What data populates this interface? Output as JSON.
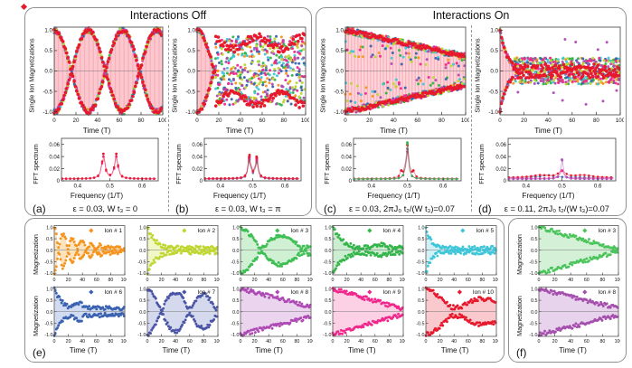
{
  "figure": {
    "titles": {
      "left": "Interactions Off",
      "right": "Interactions On"
    },
    "panel_letters": {
      "a": "(a)",
      "b": "(b)",
      "c": "(c)",
      "d": "(d)",
      "e": "(e)",
      "f": "(f)"
    },
    "captions": {
      "a": "ε = 0.03, W t₃ = 0",
      "b": "ε = 0.03, W t₃ = π",
      "c": "ε = 0.03, 2πJ₀ t₂/(W t₃)=0.07",
      "d": "ε = 0.11, 2πJ₀ t₂/(W t₃)=0.07"
    },
    "axis_labels": {
      "time": "Time (T)",
      "single_ion_mag": "Single Ion Magnetizations",
      "fft": "FFT spectrum",
      "frequency": "Frequency (1/T)",
      "magnetization": "Magnetization"
    },
    "axis_ticks": {
      "time_ticks": [
        0,
        20,
        40,
        60,
        80,
        100
      ],
      "time_tick_labels": [
        "0",
        "20",
        "40",
        "60",
        "80",
        "100"
      ],
      "mag_ticks": [
        1.0,
        0.5,
        0.0,
        -0.5,
        -1.0
      ],
      "mag_tick_labels": [
        "1.0",
        "0.5",
        "0.0",
        "-0.5",
        "-1.0"
      ],
      "fft_x_ticks": [
        0.4,
        0.5,
        0.6
      ],
      "fft_x_tick_labels": [
        "0.4",
        "0.5",
        "0.6"
      ],
      "fft_y_ticks": [
        0,
        0.02,
        0.04,
        0.06
      ],
      "fft_y_tick_labels": [
        "0",
        "0.02",
        "0.04",
        "0.06"
      ]
    }
  },
  "colors": {
    "primary_trace": "#E8192C",
    "oscillation_fill": "#F9A9B4",
    "trace_palette": [
      "#F5941E",
      "#33B54A",
      "#3FC6D8",
      "#3A62B0",
      "#AE4BB5",
      "#F0288C",
      "#BFD730"
    ],
    "box_border": "#8F8F8F",
    "axis_frame": "#555555",
    "text": "#111111"
  },
  "chart_data": [
    {
      "id": "time_a",
      "panel": "a",
      "type": "scatter",
      "xlabel": "Time (T)",
      "ylabel": "Single Ion Magnetizations",
      "xlim": [
        0,
        100
      ],
      "ylim": [
        -1.1,
        1.1
      ],
      "pattern": "beat",
      "beat_period": 63,
      "amplitude": 1.0,
      "envelope_peak_times": [
        0,
        32,
        63,
        95
      ],
      "envelope_node_times": [
        16,
        47,
        79
      ],
      "note": "10 overlapping single-ion traces; red envelope with light-pink rapid oscillation fill"
    },
    {
      "id": "fft_a",
      "panel": "a",
      "type": "line",
      "xlabel": "Frequency (1/T)",
      "ylabel": "FFT spectrum",
      "xlim": [
        0.35,
        0.65
      ],
      "ylim": [
        0,
        0.07
      ],
      "series": [
        {
          "color": "#F0288C",
          "base": 0.003,
          "peaks": [
            {
              "f": 0.48,
              "a": 0.036,
              "w": 0.006
            },
            {
              "f": 0.52,
              "a": 0.036,
              "w": 0.006
            }
          ]
        },
        {
          "color": "#E8192C",
          "base": 0.0035,
          "peaks": [
            {
              "f": 0.48,
              "a": 0.04,
              "w": 0.006
            },
            {
              "f": 0.52,
              "a": 0.04,
              "w": 0.006
            }
          ]
        }
      ]
    },
    {
      "id": "time_b",
      "panel": "b",
      "type": "scatter",
      "xlabel": "Time (T)",
      "ylabel": "Single Ion Magnetizations",
      "xlim": [
        0,
        100
      ],
      "ylim": [
        -1.1,
        1.1
      ],
      "pattern": "beat_collapse",
      "beat_period": 63,
      "collapse_t": 17,
      "noise_band": 0.85,
      "note": "coherent beat collapses into multicolour noise after t≈17"
    },
    {
      "id": "fft_b",
      "panel": "b",
      "type": "line",
      "xlabel": "Frequency (1/T)",
      "ylabel": "FFT spectrum",
      "xlim": [
        0.35,
        0.65
      ],
      "ylim": [
        0,
        0.07
      ],
      "series": [
        {
          "color": "#33B54A",
          "base": 0.003,
          "peaks": [
            {
              "f": 0.49,
              "a": 0.03,
              "w": 0.005
            },
            {
              "f": 0.512,
              "a": 0.027,
              "w": 0.005
            }
          ]
        },
        {
          "color": "#AE4BB5",
          "base": 0.003,
          "peaks": [
            {
              "f": 0.49,
              "a": 0.033,
              "w": 0.005
            },
            {
              "f": 0.512,
              "a": 0.03,
              "w": 0.005
            }
          ]
        },
        {
          "color": "#F0288C",
          "base": 0.0035,
          "peaks": [
            {
              "f": 0.49,
              "a": 0.035,
              "w": 0.005
            },
            {
              "f": 0.512,
              "a": 0.032,
              "w": 0.005
            }
          ]
        },
        {
          "color": "#E8192C",
          "base": 0.004,
          "peaks": [
            {
              "f": 0.49,
              "a": 0.037,
              "w": 0.005
            },
            {
              "f": 0.512,
              "a": 0.034,
              "w": 0.005
            }
          ]
        }
      ]
    },
    {
      "id": "time_c",
      "panel": "c",
      "type": "scatter",
      "xlabel": "Time (T)",
      "ylabel": "Single Ion Magnetizations",
      "xlim": [
        0,
        100
      ],
      "ylim": [
        -1.1,
        1.1
      ],
      "pattern": "linear_decay",
      "end_amplitude": 0.35,
      "note": "envelope decays slowly and linearly from ±1 to ≈±0.35 at t=100"
    },
    {
      "id": "fft_c",
      "panel": "c",
      "type": "line",
      "xlabel": "Frequency (1/T)",
      "ylabel": "FFT spectrum",
      "xlim": [
        0.35,
        0.65
      ],
      "ylim": [
        0,
        0.07
      ],
      "series": [
        {
          "color": "#F0288C",
          "base": 0.003,
          "peaks": [
            {
              "f": 0.5,
              "a": 0.045,
              "w": 0.0045
            }
          ]
        },
        {
          "color": "#AE4BB5",
          "base": 0.003,
          "peaks": [
            {
              "f": 0.5,
              "a": 0.05,
              "w": 0.0045
            }
          ]
        },
        {
          "color": "#E8192C",
          "base": 0.0035,
          "peaks": [
            {
              "f": 0.5,
              "a": 0.055,
              "w": 0.005
            },
            {
              "f": 0.483,
              "a": 0.009,
              "w": 0.004
            },
            {
              "f": 0.517,
              "a": 0.009,
              "w": 0.004
            }
          ]
        },
        {
          "color": "#33B54A",
          "base": 0.003,
          "peaks": [
            {
              "f": 0.5,
              "a": 0.06,
              "w": 0.004
            }
          ]
        }
      ]
    },
    {
      "id": "time_d",
      "panel": "d",
      "type": "scatter",
      "xlabel": "Time (T)",
      "ylabel": "Single Ion Magnetizations",
      "xlim": [
        0,
        100
      ],
      "ylim": [
        -1.1,
        1.1
      ],
      "pattern": "fast_collapse",
      "decay_tau": 6,
      "noise_band": 0.25,
      "note": "rapid collapse by t≈15 into a narrow noisy band with sparse purple spikes"
    },
    {
      "id": "fft_d",
      "panel": "d",
      "type": "line",
      "xlabel": "Frequency (1/T)",
      "ylabel": "FFT spectrum",
      "xlim": [
        0.35,
        0.65
      ],
      "ylim": [
        0,
        0.07
      ],
      "series": [
        {
          "color": "#3A62B0",
          "base": 0.0055,
          "peaks": [
            {
              "f": 0.46,
              "a": 0.004,
              "w": 0.02
            }
          ]
        },
        {
          "color": "#E8192C",
          "base": 0.005,
          "peaks": [
            {
              "f": 0.5,
              "a": 0.01,
              "w": 0.012
            },
            {
              "f": 0.44,
              "a": 0.004,
              "w": 0.03
            },
            {
              "f": 0.56,
              "a": 0.004,
              "w": 0.03
            }
          ]
        },
        {
          "color": "#F0288C",
          "base": 0.004,
          "peaks": [
            {
              "f": 0.5,
              "a": 0.013,
              "w": 0.006
            }
          ]
        },
        {
          "color": "#AE4BB5",
          "base": 0.003,
          "peaks": [
            {
              "f": 0.5,
              "a": 0.032,
              "w": 0.004
            }
          ]
        }
      ]
    },
    {
      "id": "ions_e",
      "panel": "e",
      "type": "scatter",
      "xlabel": "Time (T)",
      "ylabel": "Magnetization",
      "xlim": [
        0,
        100
      ],
      "ylim": [
        -1.1,
        1.1
      ],
      "panels": [
        {
          "id": 1,
          "label": "Ion #  1",
          "color": "#F5941E",
          "fill": "#FBDCAE",
          "mode": "damped_osc",
          "period": 26,
          "tau": 40,
          "floor": 0.1
        },
        {
          "id": 2,
          "label": "Ion #  2",
          "color": "#BFD730",
          "fill": "#EDF5B8",
          "mode": "exp",
          "tau": 13,
          "floor": 0.16
        },
        {
          "id": 3,
          "label": "Ion #  3",
          "color": "#3FBF55",
          "fill": "#C4ECC9",
          "mode": "beat",
          "period": 120,
          "tau": 130,
          "floor": 0.18
        },
        {
          "id": 4,
          "label": "Ion #  4",
          "color": "#33B54A",
          "fill": "#C0E8C6",
          "mode": "exp",
          "tau": 16,
          "floor": 0.22,
          "revivals": [
            {
              "t": 68,
              "a": 0.22,
              "w": 14
            }
          ]
        },
        {
          "id": 5,
          "label": "Ion #  5",
          "color": "#3FC6D8",
          "fill": "#C6EDF4",
          "mode": "exp",
          "tau": 9,
          "floor": 0.15
        },
        {
          "id": 6,
          "label": "Ion #  6",
          "color": "#3A62B0",
          "fill": "#C5D2EE",
          "mode": "exp",
          "tau": 13,
          "floor": 0.25,
          "revivals": [
            {
              "t": 36,
              "a": 0.3,
              "w": 9
            }
          ]
        },
        {
          "id": 7,
          "label": "Ion #  7",
          "color": "#4A55A5",
          "fill": "#CBCFEA",
          "mode": "beat",
          "period": 80,
          "tau": 250,
          "floor": 0.2
        },
        {
          "id": 8,
          "label": "Ion #  8",
          "color": "#AE4BB5",
          "fill": "#E6C9EA",
          "mode": "linear",
          "k": 0.0078,
          "floor": 0.22
        },
        {
          "id": 9,
          "label": "Ion #  9",
          "color": "#F0288C",
          "fill": "#FBC6E0",
          "mode": "linear",
          "k": 0.0088,
          "floor": 0.12
        },
        {
          "id": 10,
          "label": "Ion #  10",
          "color": "#E8192C",
          "fill": "#F9BCC0",
          "mode": "beat",
          "period": 170,
          "tau": 140,
          "floor": 0.32
        }
      ]
    },
    {
      "id": "ions_f",
      "panel": "f",
      "type": "scatter",
      "xlabel": "Time (T)",
      "ylabel": "Magnetization",
      "xlim": [
        0,
        100
      ],
      "ylim": [
        -1.1,
        1.1
      ],
      "panels": [
        {
          "id": 3,
          "label": "Ion #  3",
          "color": "#4CC45C",
          "fill": "#C9EECD",
          "mode": "linear",
          "k": 0.0095,
          "floor": 0.05
        },
        {
          "id": 8,
          "label": "Ion #  8",
          "color": "#A44FAD",
          "fill": "#E2C8E7",
          "mode": "linear",
          "k": 0.0085,
          "floor": 0.1
        }
      ]
    }
  ]
}
